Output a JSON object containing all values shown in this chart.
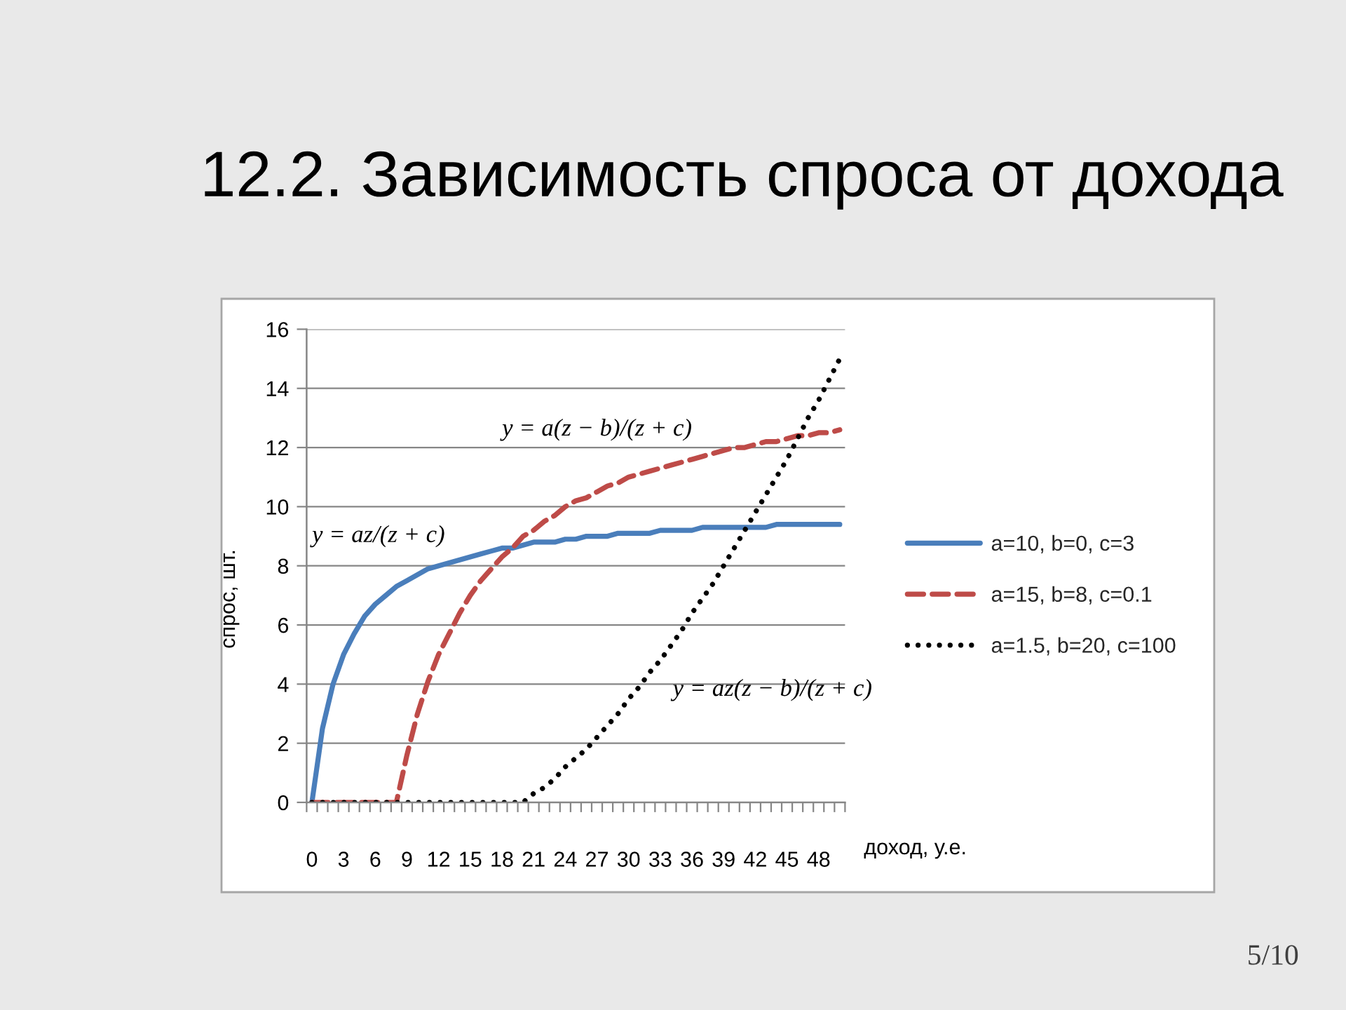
{
  "chart_data": {
    "type": "line",
    "title": "12.2. Зависимость спроса от дохода",
    "xlabel": "доход, у.е.",
    "ylabel": "спрос, шт.",
    "categories": [
      "0",
      null,
      null,
      "3",
      null,
      null,
      "6",
      null,
      null,
      "9",
      null,
      null,
      "12",
      null,
      null,
      "15",
      null,
      null,
      "18",
      null,
      null,
      "21",
      null,
      null,
      "24",
      null,
      null,
      "27",
      null,
      null,
      "30",
      null,
      null,
      "33",
      null,
      null,
      "36",
      null,
      null,
      "39",
      null,
      null,
      "42",
      null,
      null,
      "45",
      null,
      null,
      "48",
      null,
      null
    ],
    "series": [
      {
        "name": "a=10, b=0, c=3",
        "color": "#4a7ebb",
        "line_style": "solid",
        "values": [
          0,
          2.5,
          4.0,
          5.0,
          5.7,
          6.3,
          6.7,
          7.0,
          7.3,
          7.5,
          7.7,
          7.9,
          8.0,
          8.1,
          8.2,
          8.3,
          8.4,
          8.5,
          8.6,
          8.6,
          8.7,
          8.8,
          8.8,
          8.8,
          8.9,
          8.9,
          9.0,
          9.0,
          9.0,
          9.1,
          9.1,
          9.1,
          9.1,
          9.2,
          9.2,
          9.2,
          9.2,
          9.3,
          9.3,
          9.3,
          9.3,
          9.3,
          9.3,
          9.3,
          9.4,
          9.4,
          9.4,
          9.4,
          9.4,
          9.4,
          9.4
        ]
      },
      {
        "name": "a=15, b=8, c=0.1",
        "color": "#be4b48",
        "line_style": "dashed",
        "values": [
          0,
          0,
          0,
          0,
          0,
          0,
          0,
          0,
          0,
          1.6,
          3.0,
          4.1,
          5.0,
          5.7,
          6.4,
          7.0,
          7.5,
          7.9,
          8.3,
          8.6,
          9.0,
          9.2,
          9.5,
          9.7,
          10.0,
          10.2,
          10.3,
          10.5,
          10.7,
          10.8,
          11.0,
          11.1,
          11.2,
          11.3,
          11.4,
          11.5,
          11.6,
          11.7,
          11.8,
          11.9,
          12.0,
          12.0,
          12.1,
          12.2,
          12.2,
          12.3,
          12.4,
          12.4,
          12.5,
          12.5,
          12.6
        ]
      },
      {
        "name": "a=1.5, b=20, c=100",
        "color": "#000000",
        "line_style": "dotted",
        "values": [
          0,
          0,
          0,
          0,
          0,
          0,
          0,
          0,
          0,
          0,
          0,
          0,
          0,
          0,
          0,
          0,
          0,
          0,
          0,
          0,
          0,
          0.3,
          0.5,
          0.8,
          1.2,
          1.5,
          1.8,
          2.2,
          2.6,
          3.0,
          3.5,
          3.9,
          4.4,
          4.8,
          5.3,
          5.8,
          6.4,
          6.9,
          7.4,
          8.0,
          8.6,
          9.2,
          9.8,
          10.4,
          11.0,
          11.6,
          12.3,
          13.0,
          13.6,
          14.3,
          15.0
        ]
      }
    ],
    "ylim": [
      0,
      16
    ],
    "yticks": [
      0,
      2,
      4,
      6,
      8,
      10,
      12,
      14,
      16
    ],
    "grid": "y",
    "legend": "right",
    "annotations": [
      "y = az/(z + c)",
      "y = a(z − b)/(z + c)",
      "y = az(z − b)/(z + c)",
      "5/10"
    ]
  }
}
